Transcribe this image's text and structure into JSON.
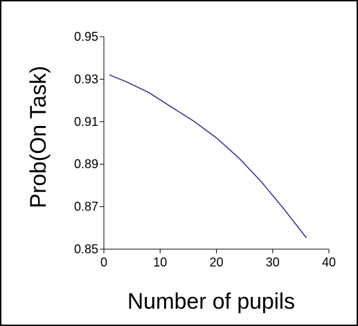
{
  "chart_data": {
    "type": "line",
    "title": "",
    "xlabel": "Number of pupils",
    "ylabel": "Prob(On Task)",
    "xlim": [
      0,
      40
    ],
    "ylim": [
      0.85,
      0.95
    ],
    "x_ticks": [
      "0",
      "10",
      "20",
      "30",
      "40"
    ],
    "y_ticks": [
      "0.85",
      "0.87",
      "0.89",
      "0.91",
      "0.93",
      "0.95"
    ],
    "grid": false,
    "legend": "none",
    "series": [
      {
        "color": "#1f1f8f",
        "x": [
          1,
          4,
          8,
          12,
          16,
          20,
          24,
          28,
          32,
          36
        ],
        "y": [
          0.932,
          0.9288,
          0.9237,
          0.9169,
          0.9102,
          0.9024,
          0.8929,
          0.8817,
          0.8689,
          0.8553
        ]
      }
    ]
  }
}
